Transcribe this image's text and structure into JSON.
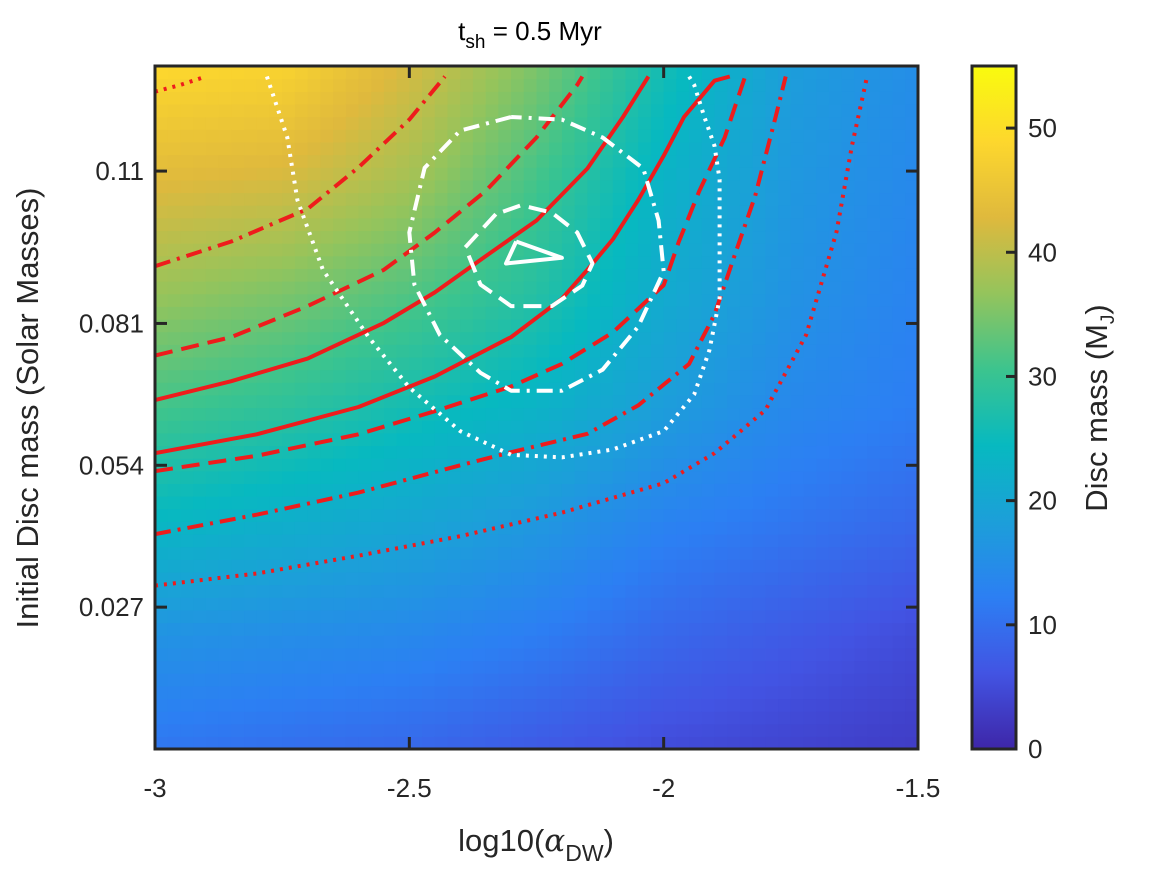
{
  "chart_data": {
    "type": "heatmap",
    "title": "t_sh = 0.5 Myr",
    "title_parts": {
      "main": "t",
      "sub": "sh",
      "rest": " = 0.5 Myr"
    },
    "xlabel": "log10(α_DW)",
    "xlabel_parts": {
      "main": "log10(",
      "greek": "α",
      "sub": "DW",
      "close": ")"
    },
    "ylabel": "Initial Disc mass (Solar Masses)",
    "xlim": [
      -3,
      -1.5
    ],
    "ylim": [
      0,
      0.13
    ],
    "x_ticks": [
      -3,
      -2.5,
      -2,
      -1.5
    ],
    "x_tick_labels": [
      "-3",
      "-2.5",
      "-2",
      "-1.5"
    ],
    "y_ticks": [
      0.027,
      0.054,
      0.081,
      0.11
    ],
    "y_tick_labels": [
      "0.027",
      "0.054",
      "0.081",
      "0.11"
    ],
    "colorbar": {
      "label": "Disc mass (M_J)",
      "label_parts": {
        "main": "Disc mass (M",
        "sub": "J",
        "close": ")"
      },
      "range": [
        0,
        55
      ],
      "ticks": [
        0,
        10,
        20,
        30,
        40,
        50
      ],
      "tick_labels": [
        "0",
        "10",
        "20",
        "30",
        "40",
        "50"
      ],
      "colormap": "parula"
    },
    "colormap_stops": [
      "#3e26a8",
      "#4254e3",
      "#2c7ff3",
      "#1c9fd9",
      "#07b9c0",
      "#3cc48e",
      "#94c45c",
      "#dfb93d",
      "#fdd72d",
      "#f9fb0e"
    ],
    "heatmap_grid": {
      "x": [
        -3,
        -2.75,
        -2.5,
        -2.25,
        -2,
        -1.75,
        -1.5
      ],
      "y": [
        0.0,
        0.0216,
        0.0433,
        0.065,
        0.0866,
        0.1083,
        0.13
      ],
      "z": [
        [
          11,
          10,
          9,
          7,
          5,
          4,
          3
        ],
        [
          16,
          15,
          14,
          12,
          9,
          7,
          5
        ],
        [
          24,
          22,
          20,
          17,
          13,
          11,
          9
        ],
        [
          31,
          29,
          26,
          23,
          18,
          14,
          12
        ],
        [
          37,
          35,
          32,
          28,
          21,
          16,
          13
        ],
        [
          43,
          42,
          38,
          31,
          23,
          17,
          14
        ],
        [
          49,
          48,
          42,
          35,
          26,
          18,
          15
        ]
      ]
    },
    "red_contours": [
      {
        "style": "dotted",
        "points": [
          [
            -3,
            0.0311
          ],
          [
            -2.8,
            0.0334
          ],
          [
            -2.6,
            0.0368
          ],
          [
            -2.4,
            0.0405
          ],
          [
            -2.2,
            0.045
          ],
          [
            -2.0,
            0.0506
          ],
          [
            -1.9,
            0.0563
          ],
          [
            -1.8,
            0.0645
          ],
          [
            -1.72,
            0.0788
          ],
          [
            -1.66,
            0.0985
          ],
          [
            -1.63,
            0.1148
          ],
          [
            -1.6,
            0.128
          ]
        ]
      },
      {
        "style": "dashdot",
        "points": [
          [
            -3,
            0.0409
          ],
          [
            -2.8,
            0.0446
          ],
          [
            -2.6,
            0.0488
          ],
          [
            -2.4,
            0.054
          ],
          [
            -2.3,
            0.0565
          ],
          [
            -2.15,
            0.06
          ],
          [
            -2.05,
            0.0654
          ],
          [
            -1.95,
            0.0733
          ],
          [
            -1.9,
            0.0827
          ],
          [
            -1.86,
            0.0941
          ],
          [
            -1.82,
            0.1053
          ],
          [
            -1.78,
            0.1203
          ],
          [
            -1.76,
            0.128
          ]
        ]
      },
      {
        "style": "dashed",
        "points": [
          [
            -3,
            0.0529
          ],
          [
            -2.8,
            0.0558
          ],
          [
            -2.6,
            0.0599
          ],
          [
            -2.45,
            0.0643
          ],
          [
            -2.3,
            0.069
          ],
          [
            -2.2,
            0.0733
          ],
          [
            -2.1,
            0.0793
          ],
          [
            -2.0,
            0.0883
          ],
          [
            -1.97,
            0.0966
          ],
          [
            -1.93,
            0.1062
          ],
          [
            -1.88,
            0.1164
          ],
          [
            -1.84,
            0.128
          ]
        ]
      },
      {
        "style": "solid",
        "points": [
          [
            -3,
            0.0563
          ],
          [
            -2.8,
            0.0599
          ],
          [
            -2.6,
            0.0651
          ],
          [
            -2.45,
            0.0709
          ],
          [
            -2.3,
            0.0784
          ],
          [
            -2.2,
            0.0857
          ],
          [
            -2.15,
            0.0912
          ],
          [
            -2.1,
            0.097
          ],
          [
            -2.05,
            0.1045
          ],
          [
            -2.0,
            0.1129
          ],
          [
            -1.96,
            0.1203
          ],
          [
            -1.9,
            0.1272
          ],
          [
            -1.87,
            0.128
          ]
        ]
      },
      {
        "style": "solid",
        "points": [
          [
            -3,
            0.0664
          ],
          [
            -2.85,
            0.07
          ],
          [
            -2.7,
            0.0743
          ],
          [
            -2.55,
            0.0811
          ],
          [
            -2.45,
            0.0869
          ],
          [
            -2.35,
            0.0938
          ],
          [
            -2.25,
            0.1006
          ],
          [
            -2.15,
            0.1105
          ],
          [
            -2.08,
            0.1203
          ],
          [
            -2.03,
            0.128
          ]
        ]
      },
      {
        "style": "dashed",
        "points": [
          [
            -3,
            0.0749
          ],
          [
            -2.85,
            0.0784
          ],
          [
            -2.7,
            0.0843
          ],
          [
            -2.55,
            0.0912
          ],
          [
            -2.45,
            0.0983
          ],
          [
            -2.35,
            0.1062
          ],
          [
            -2.25,
            0.1164
          ],
          [
            -2.17,
            0.1264
          ],
          [
            -2.16,
            0.128
          ]
        ]
      },
      {
        "style": "dashdot",
        "points": [
          [
            -3,
            0.0919
          ],
          [
            -2.85,
            0.0966
          ],
          [
            -2.7,
            0.1028
          ],
          [
            -2.6,
            0.1107
          ],
          [
            -2.5,
            0.1198
          ],
          [
            -2.43,
            0.128
          ]
        ]
      },
      {
        "style": "dotted",
        "points": [
          [
            -3,
            0.1251
          ],
          [
            -2.95,
            0.1264
          ],
          [
            -2.9,
            0.128
          ]
        ]
      }
    ],
    "white_contours": [
      {
        "style": "dotted",
        "points": [
          [
            -2.78,
            0.128
          ],
          [
            -2.74,
            0.1164
          ],
          [
            -2.72,
            0.1045
          ],
          [
            -2.67,
            0.0912
          ],
          [
            -2.58,
            0.0784
          ],
          [
            -2.5,
            0.0688
          ],
          [
            -2.4,
            0.0605
          ],
          [
            -2.3,
            0.056
          ],
          [
            -2.2,
            0.0555
          ],
          [
            -2.1,
            0.057
          ],
          [
            -2.0,
            0.0605
          ],
          [
            -1.94,
            0.0675
          ],
          [
            -1.91,
            0.0759
          ],
          [
            -1.89,
            0.0857
          ],
          [
            -1.89,
            0.0983
          ],
          [
            -1.89,
            0.1084
          ],
          [
            -1.9,
            0.1148
          ],
          [
            -1.92,
            0.1203
          ],
          [
            -1.94,
            0.1264
          ],
          [
            -1.95,
            0.128
          ]
        ]
      },
      {
        "style": "dashdot",
        "points": [
          [
            -2.3,
            0.1203
          ],
          [
            -2.4,
            0.1177
          ],
          [
            -2.47,
            0.1106
          ],
          [
            -2.5,
            0.0983
          ],
          [
            -2.49,
            0.0884
          ],
          [
            -2.44,
            0.0788
          ],
          [
            -2.36,
            0.0716
          ],
          [
            -2.3,
            0.0682
          ],
          [
            -2.2,
            0.0682
          ],
          [
            -2.12,
            0.0722
          ],
          [
            -2.05,
            0.0804
          ],
          [
            -2.0,
            0.0909
          ],
          [
            -2.01,
            0.1006
          ],
          [
            -2.04,
            0.1105
          ],
          [
            -2.12,
            0.1164
          ],
          [
            -2.2,
            0.1198
          ],
          [
            -2.3,
            0.1203
          ]
        ]
      },
      {
        "style": "dashed",
        "points": [
          [
            -2.33,
            0.1018
          ],
          [
            -2.39,
            0.0955
          ],
          [
            -2.36,
            0.0884
          ],
          [
            -2.3,
            0.0843
          ],
          [
            -2.22,
            0.0843
          ],
          [
            -2.16,
            0.0882
          ],
          [
            -2.14,
            0.0924
          ],
          [
            -2.17,
            0.0983
          ],
          [
            -2.22,
            0.1021
          ],
          [
            -2.28,
            0.1035
          ],
          [
            -2.33,
            0.1018
          ]
        ]
      },
      {
        "style": "solid",
        "points": [
          [
            -2.29,
            0.0966
          ],
          [
            -2.31,
            0.0924
          ],
          [
            -2.2,
            0.0935
          ],
          [
            -2.29,
            0.0966
          ]
        ]
      }
    ]
  }
}
